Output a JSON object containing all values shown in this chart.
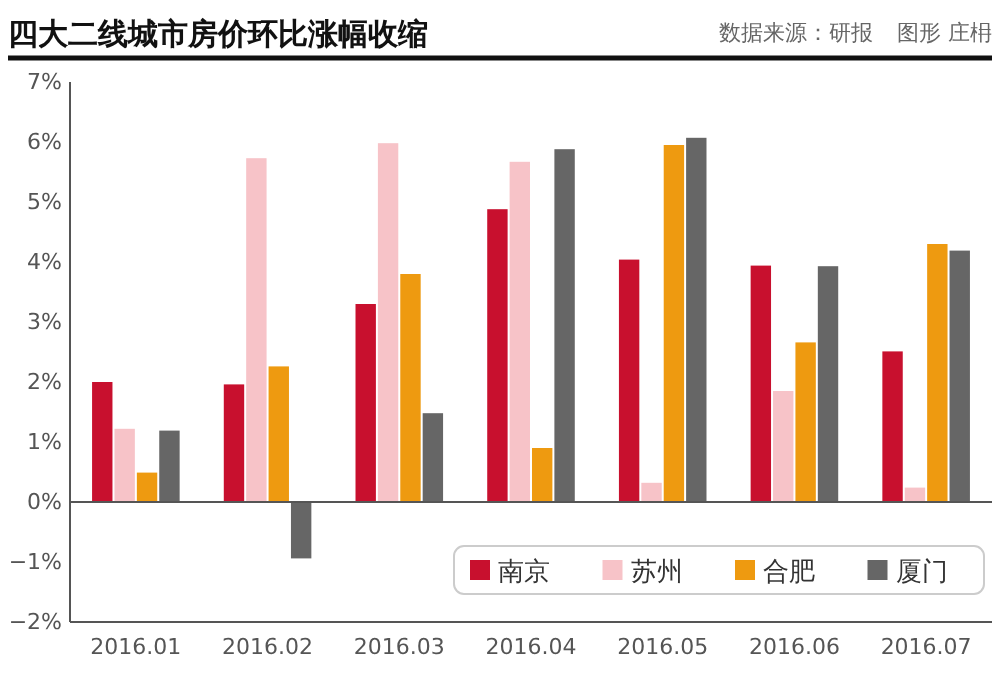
{
  "chart_data": {
    "type": "bar",
    "title": "四大二线城市房价环比涨幅收缩",
    "annotations": [
      "数据来源：研报",
      "图形 庄枏"
    ],
    "categories": [
      "2016.01",
      "2016.02",
      "2016.03",
      "2016.04",
      "2016.05",
      "2016.06",
      "2016.07"
    ],
    "series": [
      {
        "name": "南京",
        "color": "#c8102e",
        "values": [
          2.0,
          1.96,
          3.3,
          4.88,
          4.04,
          3.94,
          2.51
        ]
      },
      {
        "name": "苏州",
        "color": "#f7c3c8",
        "values": [
          1.22,
          5.73,
          5.98,
          5.67,
          0.32,
          1.85,
          0.24
        ]
      },
      {
        "name": "合肥",
        "color": "#ee9a10",
        "values": [
          0.49,
          2.26,
          3.8,
          0.9,
          5.95,
          2.66,
          4.3
        ]
      },
      {
        "name": "厦门",
        "color": "#666666",
        "values": [
          1.19,
          -0.94,
          1.48,
          5.88,
          6.07,
          3.93,
          4.19
        ]
      }
    ],
    "ylim": [
      -2,
      7
    ],
    "yticks": [
      {
        "value": -2,
        "label": "−2%"
      },
      {
        "value": -1,
        "label": "−1%"
      },
      {
        "value": 0,
        "label": "0%"
      },
      {
        "value": 1,
        "label": "1%"
      },
      {
        "value": 2,
        "label": "2%"
      },
      {
        "value": 3,
        "label": "3%"
      },
      {
        "value": 4,
        "label": "4%"
      },
      {
        "value": 5,
        "label": "5%"
      },
      {
        "value": 6,
        "label": "6%"
      },
      {
        "value": 7,
        "label": "7%"
      }
    ],
    "ref_lines": [
      {
        "axis": "y",
        "value": 0,
        "color": "#555555"
      }
    ],
    "legend": "bottom right",
    "grid": false
  }
}
